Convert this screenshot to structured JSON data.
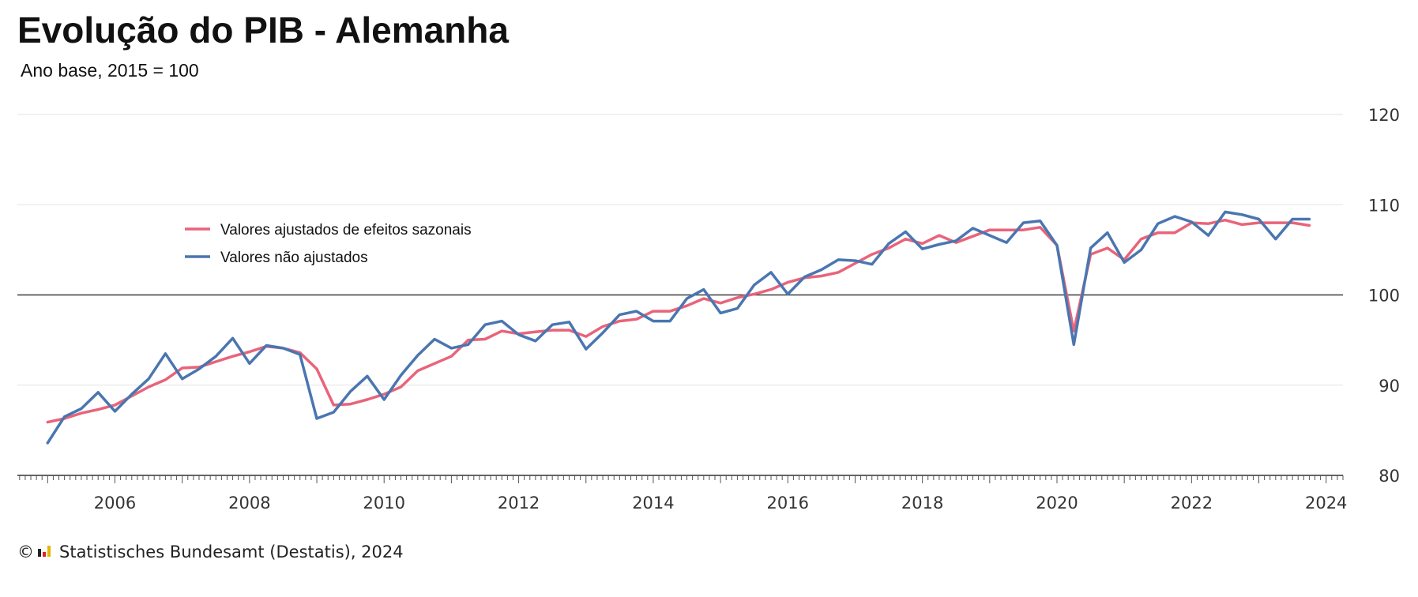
{
  "chart_data": {
    "type": "line",
    "title": "Evolução do PIB - Alemanha",
    "subtitle": "Ano base, 2015 = 100",
    "xlabel": "",
    "ylabel": "",
    "xlim": [
      2005,
      2024.1
    ],
    "ylim": [
      80,
      120
    ],
    "yticks": [
      80,
      90,
      100,
      110,
      120
    ],
    "xticks": [
      2006,
      2008,
      2010,
      2012,
      2014,
      2016,
      2018,
      2020,
      2022,
      2024
    ],
    "reference_line": 100,
    "grid": "horizontal",
    "legend_position": "upper-left",
    "x": [
      2005.0,
      2005.25,
      2005.5,
      2005.75,
      2006.0,
      2006.25,
      2006.5,
      2006.75,
      2007.0,
      2007.25,
      2007.5,
      2007.75,
      2008.0,
      2008.25,
      2008.5,
      2008.75,
      2009.0,
      2009.25,
      2009.5,
      2009.75,
      2010.0,
      2010.25,
      2010.5,
      2010.75,
      2011.0,
      2011.25,
      2011.5,
      2011.75,
      2012.0,
      2012.25,
      2012.5,
      2012.75,
      2013.0,
      2013.25,
      2013.5,
      2013.75,
      2014.0,
      2014.25,
      2014.5,
      2014.75,
      2015.0,
      2015.25,
      2015.5,
      2015.75,
      2016.0,
      2016.25,
      2016.5,
      2016.75,
      2017.0,
      2017.25,
      2017.5,
      2017.75,
      2018.0,
      2018.25,
      2018.5,
      2018.75,
      2019.0,
      2019.25,
      2019.5,
      2019.75,
      2020.0,
      2020.25,
      2020.5,
      2020.75,
      2021.0,
      2021.25,
      2021.5,
      2021.75,
      2022.0,
      2022.25,
      2022.5,
      2022.75,
      2023.0,
      2023.25,
      2023.5,
      2023.75
    ],
    "series": [
      {
        "name": "Valores ajustados de efeitos sazonais",
        "color": "#e8647a",
        "values": [
          85.9,
          86.3,
          86.9,
          87.3,
          87.8,
          88.8,
          89.8,
          90.6,
          91.9,
          92.0,
          92.6,
          93.2,
          93.7,
          94.3,
          94.1,
          93.6,
          91.8,
          87.8,
          87.9,
          88.4,
          89.0,
          89.8,
          91.6,
          92.4,
          93.2,
          95.0,
          95.1,
          96.0,
          95.7,
          95.9,
          96.1,
          96.1,
          95.4,
          96.5,
          97.1,
          97.3,
          98.2,
          98.2,
          98.8,
          99.6,
          99.1,
          99.7,
          100.1,
          100.6,
          101.4,
          101.9,
          102.1,
          102.5,
          103.5,
          104.5,
          105.2,
          106.2,
          105.7,
          106.6,
          105.8,
          106.5,
          107.2,
          107.2,
          107.2,
          107.5,
          105.5,
          96.0,
          104.5,
          105.2,
          103.9,
          106.2,
          106.9,
          106.9,
          108.0,
          107.9,
          108.3,
          107.8,
          108.0,
          108.0,
          108.0,
          107.7
        ]
      },
      {
        "name": "Valores não ajustados",
        "color": "#4a76b0",
        "values": [
          83.6,
          86.5,
          87.4,
          89.2,
          87.1,
          89.0,
          90.7,
          93.5,
          90.7,
          91.8,
          93.2,
          95.2,
          92.4,
          94.4,
          94.1,
          93.4,
          86.3,
          87.0,
          89.3,
          91.0,
          88.4,
          91.1,
          93.3,
          95.1,
          94.1,
          94.5,
          96.7,
          97.1,
          95.6,
          94.9,
          96.7,
          97.0,
          94.0,
          95.8,
          97.8,
          98.2,
          97.1,
          97.1,
          99.6,
          100.6,
          98.0,
          98.5,
          101.1,
          102.5,
          100.1,
          102.0,
          102.8,
          103.9,
          103.8,
          103.4,
          105.7,
          107.0,
          105.1,
          105.6,
          106.0,
          107.4,
          106.6,
          105.8,
          108.0,
          108.2,
          105.5,
          94.5,
          105.2,
          106.9,
          103.6,
          105.0,
          107.9,
          108.7,
          108.1,
          106.6,
          109.2,
          108.9,
          108.4,
          106.2,
          108.4,
          108.4
        ]
      }
    ]
  },
  "source": "Statistisches Bundesamt (Destatis), 2024",
  "copyright_symbol": "©"
}
